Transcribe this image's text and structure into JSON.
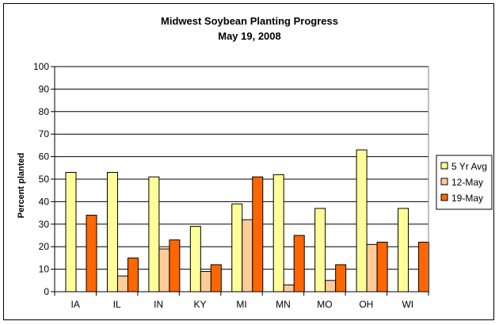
{
  "chart_data": {
    "type": "bar",
    "title": "Midwest Soybean Planting Progress",
    "subtitle": "May 19, 2008",
    "xlabel": "",
    "ylabel": "Percent planted",
    "ylim": [
      0,
      100
    ],
    "yticks": [
      0,
      10,
      20,
      30,
      40,
      50,
      60,
      70,
      80,
      90,
      100
    ],
    "categories": [
      "IA",
      "IL",
      "IN",
      "KY",
      "MI",
      "MN",
      "MO",
      "OH",
      "WI"
    ],
    "series": [
      {
        "name": "5 Yr Avg",
        "color": "#FFFF99",
        "values": [
          53,
          53,
          51,
          29,
          39,
          52,
          37,
          63,
          37
        ]
      },
      {
        "name": "12-May",
        "color": "#FFCC99",
        "values": [
          0,
          7,
          19,
          9,
          32,
          3,
          5,
          21,
          0
        ]
      },
      {
        "name": "19-May",
        "color": "#FF6600",
        "values": [
          34,
          15,
          23,
          12,
          51,
          25,
          12,
          22,
          22
        ]
      }
    ],
    "grid": true,
    "legend_position": "right"
  }
}
